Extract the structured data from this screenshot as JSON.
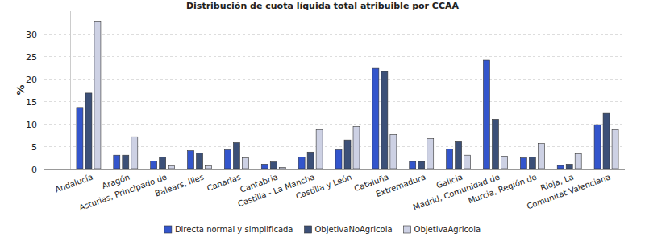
{
  "chart_data": {
    "type": "bar",
    "title": "Distribución de cuota líquida total atribuible por CCAA",
    "y_label": "%",
    "categories": [
      "Andalucía",
      "Aragón",
      "Asturias, Principado de",
      "Balears, Illes",
      "Canarias",
      "Cantabria",
      "Castilla - La Mancha",
      "Castilla y León",
      "Cataluña",
      "Extremadura",
      "Galicia",
      "Madrid, Comunidad de",
      "Murcia, Región de",
      "Rioja, La",
      "Comunitat Valenciana"
    ],
    "series": [
      {
        "name": "Directa normal y simplificada",
        "color": "#3355cc",
        "values": [
          13.6,
          3.0,
          1.7,
          4.0,
          4.2,
          1.0,
          2.6,
          4.2,
          22.3,
          1.6,
          4.4,
          24.1,
          2.4,
          0.7,
          9.8
        ]
      },
      {
        "name": "ObjetivaNoAgricola",
        "color": "#3c5078",
        "values": [
          16.8,
          3.0,
          2.6,
          3.5,
          5.8,
          1.5,
          3.7,
          6.4,
          21.6,
          1.6,
          6.0,
          11.0,
          2.6,
          1.0,
          12.3
        ]
      },
      {
        "name": "ObjetivaAgricola",
        "color": "#cdd1e4",
        "values": [
          32.8,
          7.1,
          0.6,
          0.6,
          2.4,
          0.3,
          8.7,
          9.4,
          7.6,
          6.7,
          3.0,
          2.8,
          5.6,
          3.3,
          8.7
        ]
      }
    ],
    "ylim": [
      0,
      35
    ],
    "yticks": [
      0,
      5,
      10,
      15,
      20,
      25,
      30
    ],
    "grid": true,
    "legend": "bottom"
  }
}
